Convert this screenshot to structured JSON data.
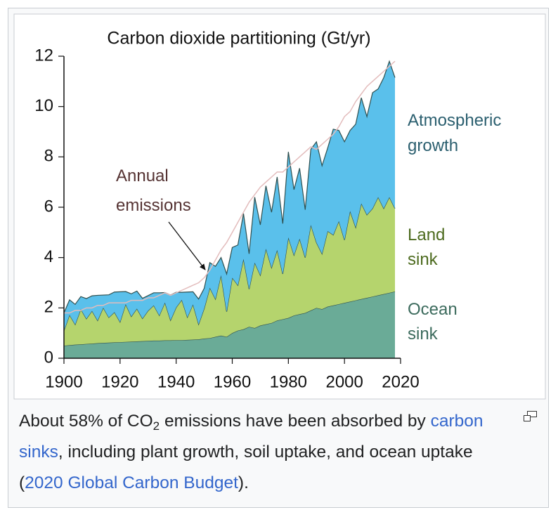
{
  "chart_data": {
    "type": "stacked_area",
    "title": "Carbon dioxide partitioning (Gt/yr)",
    "x": [
      1900,
      1902,
      1904,
      1906,
      1908,
      1910,
      1912,
      1914,
      1916,
      1918,
      1920,
      1922,
      1924,
      1926,
      1928,
      1930,
      1932,
      1934,
      1936,
      1938,
      1940,
      1942,
      1944,
      1946,
      1948,
      1950,
      1952,
      1954,
      1956,
      1958,
      1960,
      1962,
      1964,
      1966,
      1968,
      1970,
      1972,
      1974,
      1976,
      1978,
      1980,
      1982,
      1984,
      1986,
      1988,
      1990,
      1992,
      1994,
      1996,
      1998,
      2000,
      2002,
      2004,
      2006,
      2008,
      2010,
      2012,
      2014,
      2016,
      2018
    ],
    "xlim": [
      1900,
      2020
    ],
    "xticks": [
      1900,
      1920,
      1940,
      1960,
      1980,
      2000,
      2020
    ],
    "ylim": [
      0,
      12
    ],
    "yticks": [
      0,
      2,
      4,
      6,
      8,
      10,
      12
    ],
    "series": [
      {
        "name": "Ocean sink",
        "color": "#6aab97",
        "label_color": "#3c6b5d",
        "values": [
          0.5,
          0.52,
          0.54,
          0.55,
          0.57,
          0.58,
          0.6,
          0.61,
          0.62,
          0.63,
          0.64,
          0.65,
          0.66,
          0.67,
          0.68,
          0.69,
          0.7,
          0.7,
          0.71,
          0.71,
          0.72,
          0.72,
          0.73,
          0.74,
          0.75,
          0.78,
          0.8,
          0.85,
          0.9,
          0.85,
          1.0,
          1.1,
          1.15,
          1.25,
          1.2,
          1.3,
          1.35,
          1.4,
          1.5,
          1.55,
          1.6,
          1.7,
          1.75,
          1.8,
          1.9,
          2.0,
          1.95,
          2.05,
          2.1,
          2.15,
          2.2,
          2.25,
          2.3,
          2.35,
          2.4,
          2.45,
          2.5,
          2.55,
          2.6,
          2.65
        ]
      },
      {
        "name": "Land sink",
        "color": "#b5d46d",
        "label_color": "#4d6b1f",
        "values": [
          0.6,
          1.2,
          0.8,
          1.4,
          1.0,
          1.3,
          0.9,
          1.4,
          1.0,
          1.2,
          0.8,
          1.5,
          1.0,
          1.3,
          0.9,
          1.2,
          1.4,
          1.0,
          1.5,
          0.8,
          1.3,
          1.6,
          0.9,
          1.4,
          0.6,
          1.2,
          2.0,
          1.5,
          2.4,
          1.0,
          2.2,
          1.8,
          2.8,
          1.5,
          2.6,
          2.0,
          3.0,
          2.2,
          2.8,
          1.8,
          3.2,
          2.4,
          3.0,
          2.2,
          3.4,
          2.6,
          2.2,
          3.0,
          2.8,
          3.3,
          2.5,
          3.6,
          2.9,
          3.8,
          3.3,
          3.5,
          3.9,
          3.4,
          3.8,
          3.3
        ]
      },
      {
        "name": "Atmospheric growth",
        "color": "#5ac0eb",
        "label_color": "#2b5f6f",
        "values": [
          0.7,
          0.6,
          0.8,
          0.5,
          0.8,
          0.6,
          1.0,
          0.5,
          0.9,
          0.8,
          1.2,
          0.5,
          0.9,
          0.7,
          0.8,
          0.6,
          0.5,
          0.9,
          0.4,
          1.0,
          0.6,
          0.3,
          1.0,
          0.5,
          1.0,
          0.8,
          1.0,
          1.3,
          0.7,
          1.5,
          1.2,
          1.6,
          1.8,
          1.4,
          2.6,
          2.0,
          2.5,
          2.2,
          2.9,
          2.0,
          3.4,
          2.6,
          2.8,
          1.9,
          3.0,
          4.0,
          3.5,
          3.3,
          4.2,
          3.6,
          3.9,
          3.2,
          4.1,
          4.2,
          3.9,
          4.6,
          4.3,
          5.2,
          5.4,
          5.2
        ]
      }
    ],
    "line_series": {
      "name": "Annual emissions",
      "color": "#e3bcbc",
      "label_color": "#553333",
      "values": [
        1.8,
        1.8,
        1.9,
        1.9,
        2.0,
        2.0,
        2.1,
        2.1,
        2.2,
        2.2,
        2.2,
        2.2,
        2.3,
        2.3,
        2.3,
        2.4,
        2.4,
        2.5,
        2.6,
        2.5,
        2.6,
        2.7,
        2.8,
        2.9,
        3.0,
        3.2,
        3.5,
        3.9,
        4.3,
        4.6,
        5.0,
        5.4,
        5.8,
        6.2,
        6.5,
        6.8,
        7.0,
        7.2,
        7.4,
        7.4,
        7.6,
        7.8,
        8.0,
        8.2,
        8.4,
        8.3,
        8.5,
        8.7,
        8.9,
        9.2,
        9.6,
        9.8,
        10.2,
        10.5,
        10.8,
        11.0,
        11.2,
        11.4,
        11.6,
        11.8
      ]
    }
  },
  "caption": {
    "text1": "About 58% of CO",
    "sub": "2",
    "text2": " emissions have been absorbed by ",
    "link1": "carbon sinks",
    "text3": ", including plant growth, soil uptake, and ocean uptake (",
    "link2": "2020 Global Carbon Budget",
    "text4": ")."
  }
}
